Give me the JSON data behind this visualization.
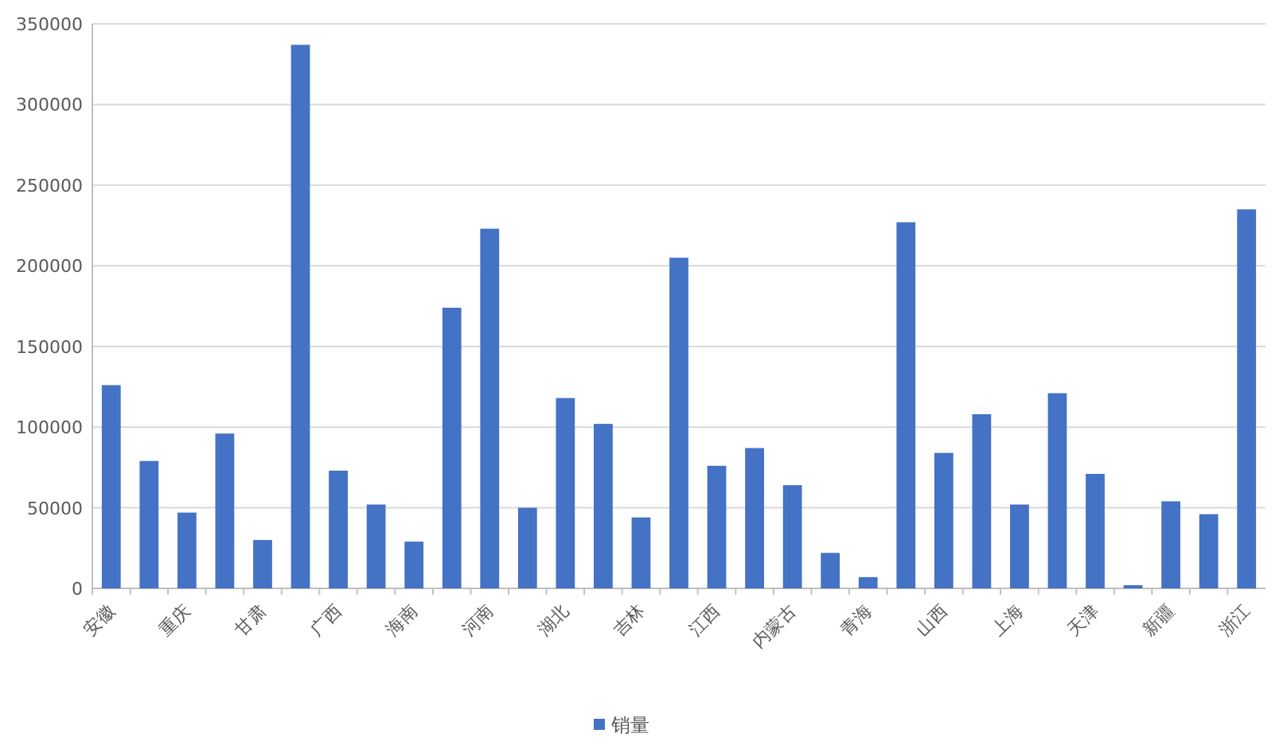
{
  "chart_data": {
    "type": "bar",
    "categories": [
      "安徽",
      null,
      "重庆",
      null,
      "甘肃",
      null,
      "广西",
      null,
      "海南",
      null,
      "河南",
      null,
      "湖北",
      null,
      "吉林",
      null,
      "江西",
      null,
      "内蒙古",
      null,
      "青海",
      null,
      "山西",
      null,
      "上海",
      null,
      "天津",
      null,
      "新疆",
      null,
      "浙江"
    ],
    "series": [
      {
        "name": "销量",
        "color": "#4472c4",
        "values": [
          126000,
          79000,
          47000,
          96000,
          30000,
          337000,
          73000,
          52000,
          29000,
          174000,
          223000,
          50000,
          118000,
          102000,
          44000,
          205000,
          76000,
          87000,
          64000,
          22000,
          7000,
          227000,
          84000,
          108000,
          52000,
          121000,
          71000,
          2000,
          54000,
          46000,
          235000
        ]
      }
    ],
    "ylim": [
      0,
      350000
    ],
    "yticks": [
      0,
      50000,
      100000,
      150000,
      200000,
      250000,
      300000,
      350000
    ],
    "grid": "y",
    "legend": "bottom"
  }
}
